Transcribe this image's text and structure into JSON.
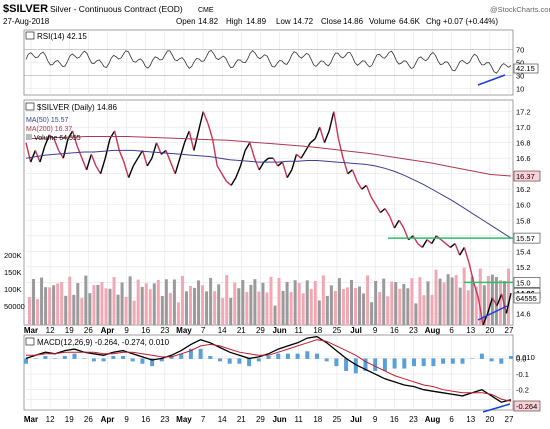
{
  "header": {
    "symbol": "$SILVER",
    "description": "Silver - Continuous Contract (EOD)",
    "exchange": "CME",
    "date": "27-Aug-2018",
    "open_label": "Open",
    "open": "14.82",
    "high_label": "High",
    "high": "14.89",
    "low_label": "Low",
    "low": "14.72",
    "close_label": "Close",
    "close": "14.86",
    "volume_label": "Volume",
    "volume": "64.6K",
    "change": "Chg +0.07 (+0.44%)",
    "watermark": "@StockCharts.com"
  },
  "colors": {
    "price_up": "#000000",
    "price_down": "#cc3355",
    "ma50": "#3a3f8f",
    "ma200": "#a83a4e",
    "volume_up": "#9a9a9a",
    "volume_down": "#f0a8b4",
    "support_line": "#2dbd6e",
    "trend_line": "#1a3fd6",
    "macd_hist": "#5aa0d8",
    "axis_label_bg": "#ffd0d8"
  },
  "chart_data": [
    {
      "type": "line",
      "panel": "rsi",
      "title": "RSI(14) 42.15",
      "y_ticks": [
        "70",
        "50",
        "30",
        "10"
      ],
      "current_label": "42.15",
      "ylim": [
        0,
        100
      ]
    },
    {
      "type": "line",
      "panel": "price",
      "title": "$SILVER (Daily) 14.86",
      "legend": [
        "$SILVER (Daily) 14.86",
        "MA(50) 15.57",
        "MA(200) 16.37",
        "Volume 64,555"
      ],
      "y_ticks": [
        "17.2",
        "17.0",
        "16.8",
        "16.6",
        "16.4",
        "16.2",
        "16.0",
        "15.8",
        "15.6",
        "15.4",
        "15.2",
        "15.0",
        "14.8",
        "14.6"
      ],
      "ylim": [
        14.45,
        17.35
      ],
      "volume_ticks": [
        "200K",
        "150K",
        "100K",
        "50000"
      ],
      "price_labels": [
        "16.37",
        "15.57",
        "15.0",
        "14.86"
      ],
      "volume_label": "64555",
      "support_levels": [
        15.57,
        15.0
      ],
      "series": [
        {
          "name": "$SILVER (Daily)",
          "values": [
            16.8,
            16.55,
            16.7,
            16.55,
            16.75,
            16.9,
            16.85,
            16.7,
            16.6,
            16.85,
            16.95,
            16.75,
            16.6,
            16.45,
            16.65,
            16.5,
            16.4,
            16.6,
            16.85,
            16.95,
            16.7,
            16.55,
            16.35,
            16.5,
            16.6,
            16.7,
            16.5,
            16.6,
            16.8,
            16.65,
            16.7,
            16.55,
            16.4,
            16.6,
            16.8,
            16.95,
            16.7,
            16.95,
            17.2,
            17.05,
            16.85,
            16.5,
            16.4,
            16.3,
            16.25,
            16.35,
            16.5,
            16.7,
            16.8,
            16.6,
            16.45,
            16.55,
            16.6,
            16.6,
            16.5,
            16.55,
            16.35,
            16.45,
            16.65,
            16.6,
            16.7,
            16.8,
            16.85,
            17.0,
            16.8,
            16.95,
            17.2,
            16.85,
            16.6,
            16.4,
            16.45,
            16.3,
            16.2,
            16.25,
            16.1,
            16.0,
            15.9,
            15.95,
            15.85,
            15.7,
            15.8,
            15.7,
            15.55,
            15.6,
            15.5,
            15.45,
            15.55,
            15.5,
            15.6,
            15.55,
            15.5,
            15.45,
            15.5,
            15.35,
            15.45,
            15.25,
            15.0,
            14.8,
            14.45,
            14.6,
            14.8,
            14.7,
            14.85,
            14.6,
            14.86
          ]
        },
        {
          "name": "MA(50)",
          "values": [
            16.6,
            16.62,
            16.64,
            16.65,
            16.66,
            16.67,
            16.68,
            16.68,
            16.69,
            16.7,
            16.7,
            16.7,
            16.69,
            16.68,
            16.67,
            16.66,
            16.65,
            16.64,
            16.63,
            16.62,
            16.6,
            16.58,
            16.57,
            16.56,
            16.55,
            16.55,
            16.55,
            16.56,
            16.56,
            16.57,
            16.57,
            16.56,
            16.55,
            16.54,
            16.53,
            16.52,
            16.5,
            16.47,
            16.43,
            16.38,
            16.32,
            16.26,
            16.19,
            16.12,
            16.05,
            15.97,
            15.89,
            15.81,
            15.73,
            15.65,
            15.57
          ]
        },
        {
          "name": "MA(200)",
          "values": [
            16.85,
            16.86,
            16.87,
            16.88,
            16.88,
            16.88,
            16.87,
            16.86,
            16.85,
            16.84,
            16.83,
            16.81,
            16.79,
            16.77,
            16.75,
            16.72,
            16.69,
            16.66,
            16.62,
            16.58,
            16.54,
            16.49,
            16.44,
            16.39,
            16.37
          ]
        }
      ]
    },
    {
      "type": "line",
      "panel": "macd",
      "title": "MACD(12,26,9) -0.264, -0.274, 0.010",
      "y_ticks": [
        "0.010",
        "0.0",
        "-0.1",
        "-0.2",
        "-0.264"
      ],
      "ylim": [
        -0.33,
        0.15
      ],
      "series": [
        {
          "name": "MACD(12,26,9)",
          "values": [
            0.0,
            0.02,
            0.04,
            0.03,
            0.05,
            0.06,
            0.04,
            0.03,
            0.02,
            0.04,
            0.05,
            0.03,
            0.01,
            -0.01,
            0.0,
            0.02,
            0.05,
            0.09,
            0.12,
            0.1,
            0.07,
            0.04,
            0.02,
            0.0,
            0.01,
            0.03,
            0.06,
            0.08,
            0.1,
            0.13,
            0.14,
            0.1,
            0.05,
            0.0,
            -0.04,
            -0.07,
            -0.1,
            -0.13,
            -0.15,
            -0.17,
            -0.18,
            -0.2,
            -0.21,
            -0.22,
            -0.23,
            -0.24,
            -0.22,
            -0.2,
            -0.24,
            -0.28,
            -0.264
          ]
        },
        {
          "name": "Signal",
          "values": [
            0.02,
            0.02,
            0.03,
            0.03,
            0.04,
            0.04,
            0.04,
            0.04,
            0.03,
            0.03,
            0.04,
            0.04,
            0.03,
            0.02,
            0.01,
            0.01,
            0.03,
            0.05,
            0.08,
            0.09,
            0.08,
            0.06,
            0.04,
            0.03,
            0.02,
            0.02,
            0.04,
            0.06,
            0.08,
            0.1,
            0.12,
            0.11,
            0.08,
            0.05,
            0.02,
            -0.02,
            -0.05,
            -0.08,
            -0.11,
            -0.13,
            -0.15,
            -0.17,
            -0.18,
            -0.2,
            -0.21,
            -0.22,
            -0.22,
            -0.22,
            -0.23,
            -0.26,
            -0.274
          ]
        }
      ]
    }
  ],
  "x_axis": {
    "ticks": [
      "Mar",
      "12",
      "19",
      "26",
      "Apr",
      "9",
      "16",
      "23",
      "May",
      "7",
      "14",
      "21",
      "29",
      "Jun",
      "11",
      "18",
      "25",
      "Jul",
      "9",
      "16",
      "23",
      "Aug",
      "6",
      "13",
      "20",
      "27"
    ]
  }
}
